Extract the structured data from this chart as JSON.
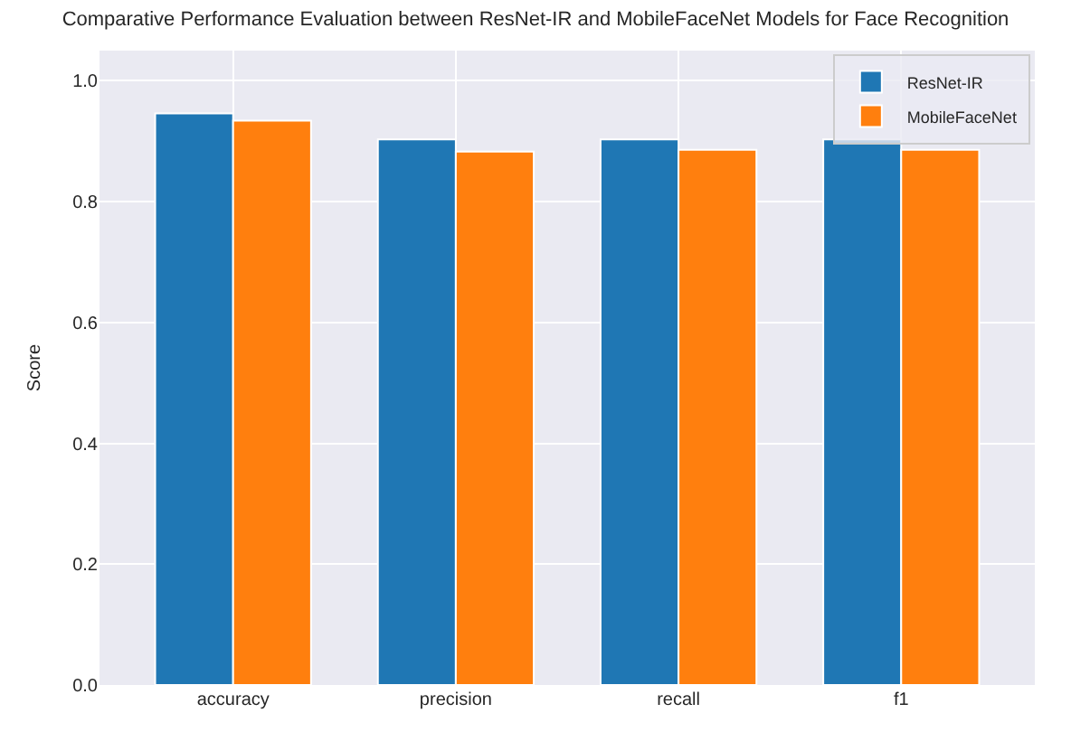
{
  "chart_data": {
    "type": "bar",
    "title": "Comparative Performance Evaluation between ResNet-IR and MobileFaceNet Models for Face Recognition",
    "ylabel": "Score",
    "categories": [
      "accuracy",
      "precision",
      "recall",
      "f1"
    ],
    "series": [
      {
        "name": "ResNet-IR",
        "color": "#1f77b4",
        "values": [
          0.946,
          0.903,
          0.903,
          0.903
        ]
      },
      {
        "name": "MobileFaceNet",
        "color": "#ff7f0e",
        "values": [
          0.934,
          0.883,
          0.886,
          0.886
        ]
      }
    ],
    "ylim": [
      0,
      1.05
    ],
    "yticks": [
      {
        "value": 0,
        "label": "0.0"
      },
      0.2,
      0.4,
      0.6,
      0.8,
      {
        "value": 1,
        "label": "1.0"
      }
    ],
    "grid": true,
    "legend": "top right"
  }
}
